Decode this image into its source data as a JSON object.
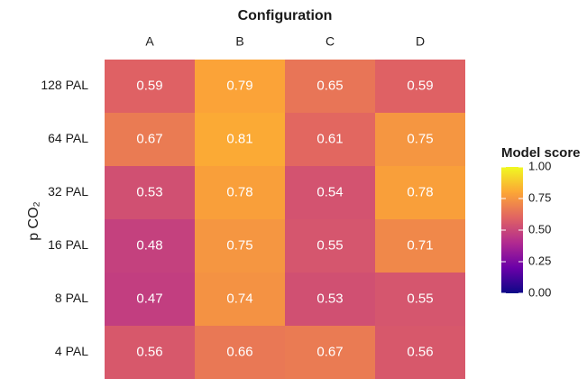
{
  "chart_data": {
    "type": "heatmap",
    "title": "Configuration",
    "x_categories": [
      "A",
      "B",
      "C",
      "D"
    ],
    "y_categories": [
      "128 PAL",
      "64 PAL",
      "32 PAL",
      "16 PAL",
      "8 PAL",
      "4 PAL"
    ],
    "y_label": "p CO₂",
    "values": [
      [
        0.59,
        0.79,
        0.65,
        0.59
      ],
      [
        0.67,
        0.81,
        0.61,
        0.75
      ],
      [
        0.53,
        0.78,
        0.54,
        0.78
      ],
      [
        0.48,
        0.75,
        0.55,
        0.71
      ],
      [
        0.47,
        0.74,
        0.53,
        0.55
      ],
      [
        0.56,
        0.66,
        0.67,
        0.56
      ]
    ],
    "colormap": [
      "#0d0887",
      "#6a00a8",
      "#b12a90",
      "#e16462",
      "#fca636",
      "#f0f921"
    ],
    "colorbar": {
      "title": "Model score",
      "lim": [
        0,
        1
      ],
      "ticks": [
        {
          "value": 0,
          "label": "0.00"
        },
        {
          "value": 0.25,
          "label": "0.25"
        },
        {
          "value": 0.5,
          "label": "0.50"
        },
        {
          "value": 0.75,
          "label": "0.75"
        },
        {
          "value": 1,
          "label": "1.00"
        }
      ]
    }
  }
}
